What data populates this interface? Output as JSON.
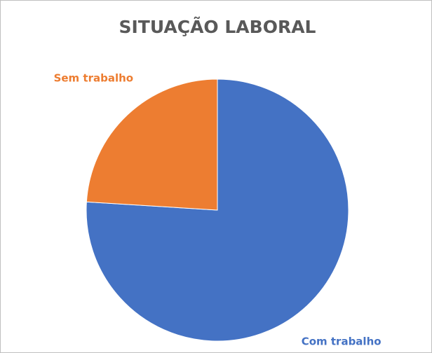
{
  "chart_data": {
    "type": "pie",
    "title": "SITUAÇÃO LABORAL",
    "categories": [
      "Com trabalho",
      "Sem trabalho"
    ],
    "values": [
      76,
      24
    ],
    "colors": [
      "#4472c4",
      "#ed7d31"
    ]
  }
}
